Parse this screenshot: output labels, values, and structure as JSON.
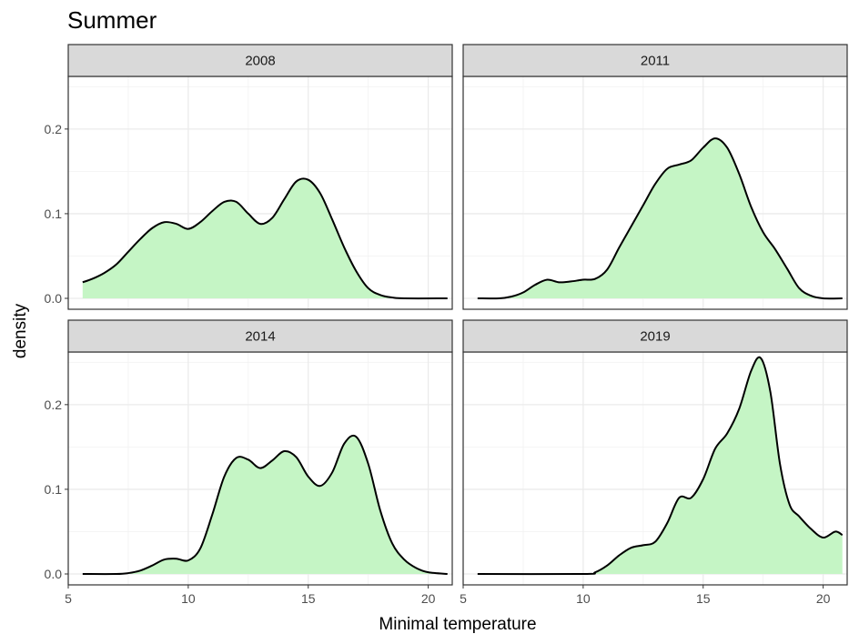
{
  "chart_data": {
    "type": "area",
    "title": "Summer",
    "xlabel": "Minimal temperature",
    "ylabel": "density",
    "xlim": [
      5,
      21
    ],
    "ylim": [
      0,
      0.26
    ],
    "x_ticks": [
      5,
      10,
      15,
      20
    ],
    "y_ticks": [
      0.0,
      0.1,
      0.2
    ],
    "x_tick_labels": [
      "5",
      "10",
      "15",
      "20"
    ],
    "y_tick_labels": [
      "0.0",
      "0.1",
      "0.2"
    ],
    "grid": true,
    "fill_color": "#c5f5c5",
    "line_color": "#000000",
    "strip_fill": "#d9d9d9",
    "panels": [
      {
        "label": "2008",
        "fill_from": 5.6,
        "fill_to": 20.8,
        "points": [
          [
            5.6,
            0.019
          ],
          [
            6.0,
            0.023
          ],
          [
            6.5,
            0.03
          ],
          [
            7.0,
            0.04
          ],
          [
            7.5,
            0.055
          ],
          [
            8.0,
            0.07
          ],
          [
            8.5,
            0.083
          ],
          [
            9.0,
            0.09
          ],
          [
            9.5,
            0.088
          ],
          [
            10.0,
            0.082
          ],
          [
            10.5,
            0.09
          ],
          [
            11.0,
            0.103
          ],
          [
            11.5,
            0.114
          ],
          [
            12.0,
            0.114
          ],
          [
            12.5,
            0.1
          ],
          [
            13.0,
            0.088
          ],
          [
            13.5,
            0.095
          ],
          [
            14.0,
            0.117
          ],
          [
            14.5,
            0.138
          ],
          [
            15.0,
            0.14
          ],
          [
            15.5,
            0.124
          ],
          [
            16.0,
            0.093
          ],
          [
            16.5,
            0.06
          ],
          [
            17.0,
            0.032
          ],
          [
            17.5,
            0.012
          ],
          [
            18.0,
            0.004
          ],
          [
            18.5,
            0.001
          ],
          [
            19.0,
            0.0
          ],
          [
            20.8,
            0.0
          ]
        ]
      },
      {
        "label": "2011",
        "fill_from": 5.6,
        "fill_to": 20.8,
        "points": [
          [
            5.6,
            0.0
          ],
          [
            6.5,
            0.0
          ],
          [
            7.0,
            0.002
          ],
          [
            7.5,
            0.007
          ],
          [
            8.0,
            0.016
          ],
          [
            8.5,
            0.022
          ],
          [
            9.0,
            0.019
          ],
          [
            9.5,
            0.02
          ],
          [
            10.0,
            0.022
          ],
          [
            10.5,
            0.023
          ],
          [
            11.0,
            0.034
          ],
          [
            11.5,
            0.06
          ],
          [
            12.0,
            0.085
          ],
          [
            12.5,
            0.11
          ],
          [
            13.0,
            0.135
          ],
          [
            13.5,
            0.153
          ],
          [
            14.0,
            0.158
          ],
          [
            14.5,
            0.163
          ],
          [
            15.0,
            0.178
          ],
          [
            15.5,
            0.189
          ],
          [
            16.0,
            0.178
          ],
          [
            16.5,
            0.147
          ],
          [
            17.0,
            0.108
          ],
          [
            17.5,
            0.078
          ],
          [
            18.0,
            0.058
          ],
          [
            18.5,
            0.035
          ],
          [
            19.0,
            0.012
          ],
          [
            19.5,
            0.003
          ],
          [
            20.0,
            0.0
          ],
          [
            20.8,
            0.0
          ]
        ]
      },
      {
        "label": "2014",
        "fill_from": 5.6,
        "fill_to": 20.8,
        "points": [
          [
            5.6,
            0.0
          ],
          [
            7.0,
            0.0
          ],
          [
            7.5,
            0.001
          ],
          [
            8.0,
            0.004
          ],
          [
            8.5,
            0.01
          ],
          [
            9.0,
            0.017
          ],
          [
            9.5,
            0.018
          ],
          [
            10.0,
            0.016
          ],
          [
            10.5,
            0.03
          ],
          [
            11.0,
            0.07
          ],
          [
            11.5,
            0.115
          ],
          [
            12.0,
            0.137
          ],
          [
            12.5,
            0.135
          ],
          [
            13.0,
            0.125
          ],
          [
            13.5,
            0.134
          ],
          [
            14.0,
            0.145
          ],
          [
            14.5,
            0.138
          ],
          [
            15.0,
            0.115
          ],
          [
            15.5,
            0.104
          ],
          [
            16.0,
            0.12
          ],
          [
            16.5,
            0.154
          ],
          [
            17.0,
            0.162
          ],
          [
            17.5,
            0.13
          ],
          [
            18.0,
            0.075
          ],
          [
            18.5,
            0.036
          ],
          [
            19.0,
            0.017
          ],
          [
            19.5,
            0.007
          ],
          [
            20.0,
            0.002
          ],
          [
            20.8,
            0.0
          ]
        ]
      },
      {
        "label": "2019",
        "fill_from": 5.6,
        "fill_to": 20.8,
        "points": [
          [
            5.6,
            0.0
          ],
          [
            10.0,
            0.0
          ],
          [
            10.5,
            0.002
          ],
          [
            11.0,
            0.01
          ],
          [
            11.5,
            0.022
          ],
          [
            12.0,
            0.031
          ],
          [
            12.5,
            0.034
          ],
          [
            13.0,
            0.038
          ],
          [
            13.5,
            0.06
          ],
          [
            14.0,
            0.09
          ],
          [
            14.5,
            0.09
          ],
          [
            15.0,
            0.112
          ],
          [
            15.5,
            0.148
          ],
          [
            16.0,
            0.166
          ],
          [
            16.5,
            0.195
          ],
          [
            17.0,
            0.24
          ],
          [
            17.4,
            0.255
          ],
          [
            17.8,
            0.215
          ],
          [
            18.2,
            0.13
          ],
          [
            18.6,
            0.082
          ],
          [
            19.0,
            0.068
          ],
          [
            19.5,
            0.053
          ],
          [
            20.0,
            0.043
          ],
          [
            20.5,
            0.05
          ],
          [
            20.8,
            0.046
          ]
        ]
      }
    ]
  }
}
